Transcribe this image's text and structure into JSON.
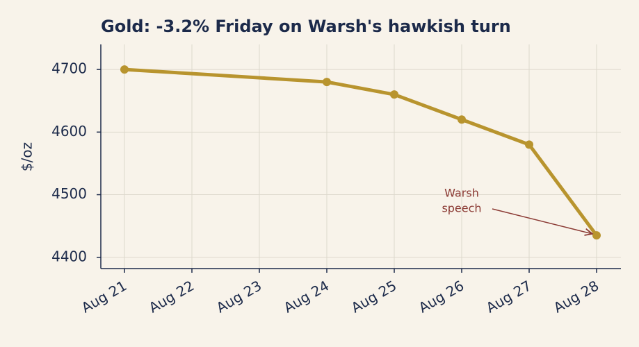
{
  "chart_data": {
    "type": "line",
    "title": "Gold: -3.2% Friday on Warsh's hawkish turn",
    "y_label": "$/oz",
    "x": [
      "Aug 21",
      "Aug 24",
      "Aug 25",
      "Aug 26",
      "Aug 27",
      "Aug 28"
    ],
    "xticks": [
      "Aug 21",
      "Aug 22",
      "Aug 23",
      "Aug 24",
      "Aug 25",
      "Aug 26",
      "Aug 27",
      "Aug 28"
    ],
    "series": [
      {
        "name": "Gold",
        "color": "#b8942e",
        "values": [
          4700,
          4680,
          4660,
          4620,
          4580,
          4435
        ]
      }
    ],
    "ylim": [
      4382,
      4740
    ],
    "yticks": [
      4400,
      4500,
      4600,
      4700
    ],
    "grid": true,
    "annotation": [
      "Warsh",
      "speech"
    ]
  }
}
